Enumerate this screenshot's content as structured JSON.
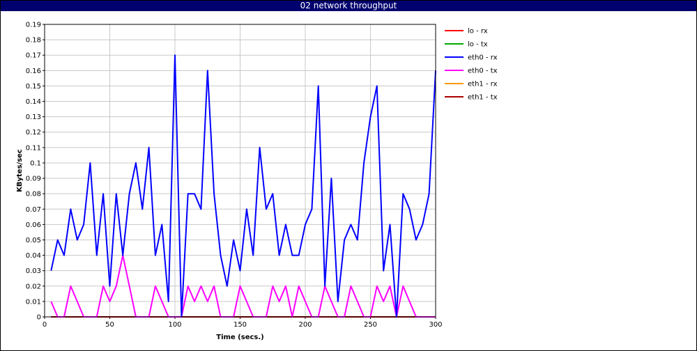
{
  "window": {
    "title": "02 network throughput"
  },
  "chart_data": {
    "type": "line",
    "title": "02 network throughput",
    "xlabel": "Time (secs.)",
    "ylabel": "KBytes/sec",
    "xlim": [
      0,
      300
    ],
    "ylim": [
      0,
      0.19
    ],
    "x_ticks": [
      0,
      50,
      100,
      150,
      200,
      250,
      300
    ],
    "y_ticks": [
      0,
      0.01,
      0.02,
      0.03,
      0.04,
      0.05,
      0.06,
      0.07,
      0.08,
      0.09,
      0.1,
      0.11,
      0.12,
      0.13,
      0.14,
      0.15,
      0.16,
      0.17,
      0.18,
      0.19
    ],
    "grid": true,
    "legend_position": "right",
    "series": [
      {
        "name": "lo - rx",
        "color": "#ff0000",
        "points": [
          [
            5,
            0
          ],
          [
            300,
            0
          ]
        ]
      },
      {
        "name": "lo - tx",
        "color": "#00aa00",
        "points": [
          [
            5,
            0
          ],
          [
            300,
            0
          ]
        ]
      },
      {
        "name": "eth0 - rx",
        "color": "#0000ff",
        "points": [
          [
            5,
            0.03
          ],
          [
            10,
            0.05
          ],
          [
            15,
            0.04
          ],
          [
            20,
            0.07
          ],
          [
            25,
            0.05
          ],
          [
            30,
            0.06
          ],
          [
            35,
            0.1
          ],
          [
            40,
            0.04
          ],
          [
            45,
            0.08
          ],
          [
            50,
            0.02
          ],
          [
            55,
            0.08
          ],
          [
            60,
            0.04
          ],
          [
            65,
            0.08
          ],
          [
            70,
            0.1
          ],
          [
            75,
            0.07
          ],
          [
            80,
            0.11
          ],
          [
            85,
            0.04
          ],
          [
            90,
            0.06
          ],
          [
            95,
            0.01
          ],
          [
            100,
            0.17
          ],
          [
            105,
            0
          ],
          [
            110,
            0.08
          ],
          [
            115,
            0.08
          ],
          [
            120,
            0.07
          ],
          [
            125,
            0.16
          ],
          [
            130,
            0.08
          ],
          [
            135,
            0.04
          ],
          [
            140,
            0.02
          ],
          [
            145,
            0.05
          ],
          [
            150,
            0.03
          ],
          [
            155,
            0.07
          ],
          [
            160,
            0.04
          ],
          [
            165,
            0.11
          ],
          [
            170,
            0.07
          ],
          [
            175,
            0.08
          ],
          [
            180,
            0.04
          ],
          [
            185,
            0.06
          ],
          [
            190,
            0.04
          ],
          [
            195,
            0.04
          ],
          [
            200,
            0.06
          ],
          [
            205,
            0.07
          ],
          [
            210,
            0.15
          ],
          [
            215,
            0.02
          ],
          [
            220,
            0.09
          ],
          [
            225,
            0.01
          ],
          [
            230,
            0.05
          ],
          [
            235,
            0.06
          ],
          [
            240,
            0.05
          ],
          [
            245,
            0.1
          ],
          [
            250,
            0.13
          ],
          [
            255,
            0.15
          ],
          [
            260,
            0.03
          ],
          [
            265,
            0.06
          ],
          [
            270,
            0
          ],
          [
            275,
            0.08
          ],
          [
            280,
            0.07
          ],
          [
            285,
            0.05
          ],
          [
            290,
            0.06
          ],
          [
            295,
            0.08
          ],
          [
            300,
            0.16
          ]
        ]
      },
      {
        "name": "eth0 - tx",
        "color": "#ff00ff",
        "points": [
          [
            5,
            0.01
          ],
          [
            10,
            0
          ],
          [
            15,
            0
          ],
          [
            20,
            0.02
          ],
          [
            25,
            0.01
          ],
          [
            30,
            0
          ],
          [
            35,
            0
          ],
          [
            40,
            0
          ],
          [
            45,
            0.02
          ],
          [
            50,
            0.01
          ],
          [
            55,
            0.02
          ],
          [
            60,
            0.04
          ],
          [
            65,
            0.02
          ],
          [
            70,
            0
          ],
          [
            75,
            0
          ],
          [
            80,
            0
          ],
          [
            85,
            0.02
          ],
          [
            90,
            0.01
          ],
          [
            95,
            0
          ],
          [
            100,
            0
          ],
          [
            105,
            0
          ],
          [
            110,
            0.02
          ],
          [
            115,
            0.01
          ],
          [
            120,
            0.02
          ],
          [
            125,
            0.01
          ],
          [
            130,
            0.02
          ],
          [
            135,
            0
          ],
          [
            140,
            0
          ],
          [
            145,
            0
          ],
          [
            150,
            0.02
          ],
          [
            155,
            0.01
          ],
          [
            160,
            0
          ],
          [
            165,
            0
          ],
          [
            170,
            0
          ],
          [
            175,
            0.02
          ],
          [
            180,
            0.01
          ],
          [
            185,
            0.02
          ],
          [
            190,
            0
          ],
          [
            195,
            0.02
          ],
          [
            200,
            0.01
          ],
          [
            205,
            0
          ],
          [
            210,
            0
          ],
          [
            215,
            0.02
          ],
          [
            220,
            0.01
          ],
          [
            225,
            0
          ],
          [
            230,
            0
          ],
          [
            235,
            0.02
          ],
          [
            240,
            0.01
          ],
          [
            245,
            0
          ],
          [
            250,
            0
          ],
          [
            255,
            0.02
          ],
          [
            260,
            0.01
          ],
          [
            265,
            0.02
          ],
          [
            270,
            0
          ],
          [
            275,
            0.02
          ],
          [
            280,
            0.01
          ],
          [
            285,
            0
          ],
          [
            290,
            0
          ],
          [
            295,
            0
          ],
          [
            300,
            0
          ]
        ]
      },
      {
        "name": "eth1 - rx",
        "color": "#ff9900",
        "points": [
          [
            5,
            0
          ],
          [
            300,
            0
          ]
        ]
      },
      {
        "name": "eth1 - tx",
        "color": "#aa0000",
        "points": [
          [
            5,
            0
          ],
          [
            300,
            0
          ]
        ]
      }
    ]
  }
}
